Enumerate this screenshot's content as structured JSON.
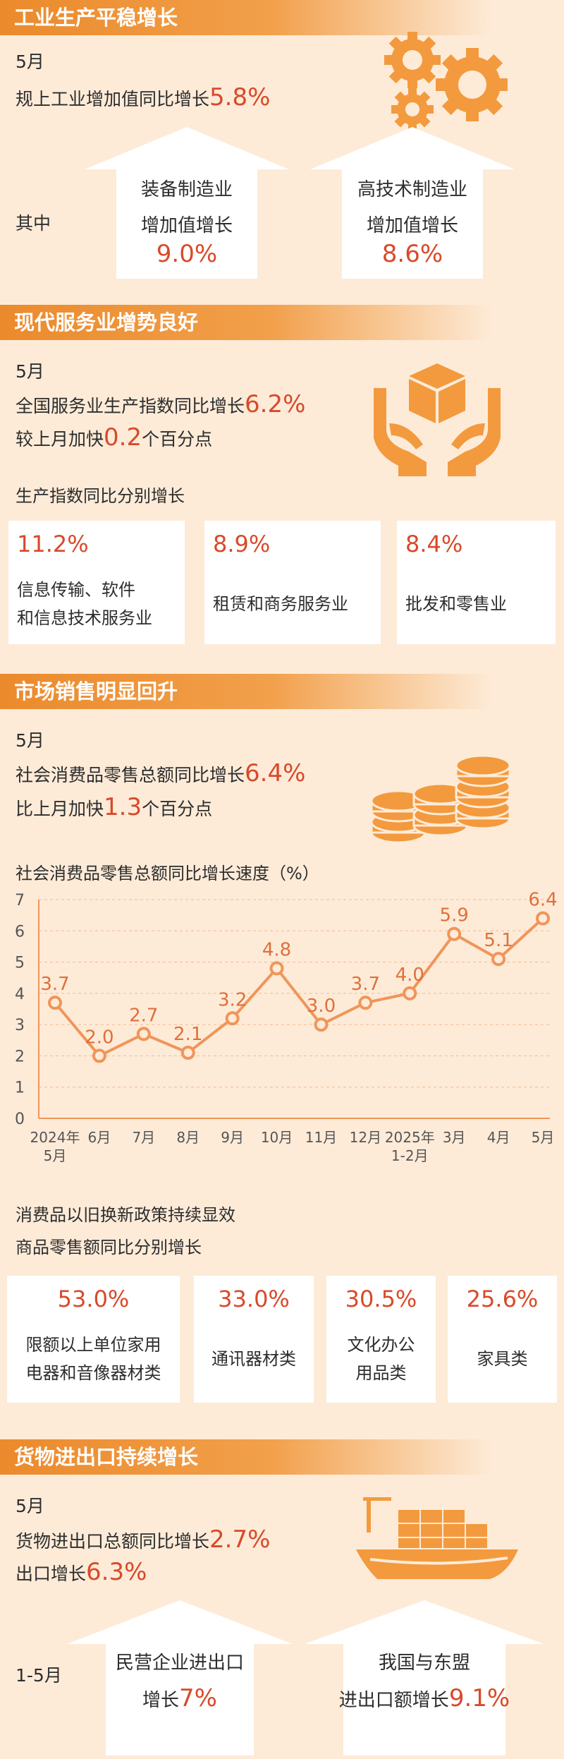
{
  "sections": {
    "industry": {
      "title": "工业生产平稳增长",
      "month": "5月",
      "line_prefix": "规上工业增加值同比增长",
      "line_value": "5.8%",
      "qizhong": "其中",
      "box1": {
        "l1": "装备制造业",
        "l2": "增加值增长",
        "val": "9.0%"
      },
      "box2": {
        "l1": "高技术制造业",
        "l2": "增加值增长",
        "val": "8.6%"
      }
    },
    "service": {
      "title": "现代服务业增势良好",
      "month": "5月",
      "line1_prefix": "全国服务业生产指数同比增长",
      "line1_value": "6.2%",
      "line2_prefix": "较上月加快",
      "line2_value": "0.2",
      "line2_suffix": "个百分点",
      "subtitle": "生产指数同比分别增长",
      "cards": [
        {
          "value": "11.2%",
          "label1": "信息传输、软件",
          "label2": "和信息技术服务业"
        },
        {
          "value": "8.9%",
          "label1": "租赁和商务服务业",
          "label2": ""
        },
        {
          "value": "8.4%",
          "label1": "批发和零售业",
          "label2": ""
        }
      ]
    },
    "retail": {
      "title": "市场销售明显回升",
      "month": "5月",
      "line1_prefix": "社会消费品零售总额同比增长",
      "line1_value": "6.4%",
      "line2_prefix": "比上月加快",
      "line2_value": "1.3",
      "line2_suffix": "个百分点",
      "chart_title": "社会消费品零售总额同比增长速度（%）",
      "policy1": "消费品以旧换新政策持续显效",
      "policy2": "商品零售额同比分别增长",
      "cards": [
        {
          "value": "53.0%",
          "label1": "限额以上单位家用",
          "label2": "电器和音像器材类"
        },
        {
          "value": "33.0%",
          "label1": "通讯器材类",
          "label2": ""
        },
        {
          "value": "30.5%",
          "label1": "文化办公",
          "label2": "用品类"
        },
        {
          "value": "25.6%",
          "label1": "家具类",
          "label2": ""
        }
      ]
    },
    "trade": {
      "title": "货物进出口持续增长",
      "month": "5月",
      "line1_prefix": "货物进出口总额同比增长",
      "line1_value": "2.7%",
      "line2_prefix": "出口增长",
      "line2_value": "6.3%",
      "period": "1-5月",
      "box1": {
        "l1": "民营企业进出口",
        "l2_prefix": "增长",
        "val": "7%"
      },
      "box2": {
        "l1": "我国与东盟",
        "l2_prefix": "进出口额增长",
        "val": "9.1%"
      }
    }
  },
  "colors": {
    "accent": "#eb8a2c",
    "number": "#d84a2a",
    "line": "#f0955a",
    "background": "#fdebd8"
  },
  "chart_data": {
    "type": "line",
    "title": "社会消费品零售总额同比增长速度（%）",
    "categories": [
      "2024年5月",
      "6月",
      "7月",
      "8月",
      "9月",
      "10月",
      "11月",
      "12月",
      "2025年1-2月",
      "3月",
      "4月",
      "5月"
    ],
    "values": [
      3.7,
      2.0,
      2.7,
      2.1,
      3.2,
      4.8,
      3.0,
      3.7,
      4.0,
      5.9,
      5.1,
      6.4
    ],
    "value_labels": [
      "3.7",
      "2.0",
      "2.7",
      "2.1",
      "3.2",
      "4.8",
      "3.0",
      "3.7",
      "4.0",
      "5.9",
      "5.1",
      "6.4"
    ],
    "tick_labels": [
      {
        "l1": "2024年",
        "l2": "5月"
      },
      {
        "l1": "6月",
        "l2": ""
      },
      {
        "l1": "7月",
        "l2": ""
      },
      {
        "l1": "8月",
        "l2": ""
      },
      {
        "l1": "9月",
        "l2": ""
      },
      {
        "l1": "10月",
        "l2": ""
      },
      {
        "l1": "11月",
        "l2": ""
      },
      {
        "l1": "12月",
        "l2": ""
      },
      {
        "l1": "2025年",
        "l2": "1-2月"
      },
      {
        "l1": "3月",
        "l2": ""
      },
      {
        "l1": "4月",
        "l2": ""
      },
      {
        "l1": "5月",
        "l2": ""
      }
    ],
    "y_ticks": [
      "0",
      "1",
      "2",
      "3",
      "4",
      "5",
      "6",
      "7"
    ],
    "ylim": [
      0,
      7
    ],
    "grid": true
  }
}
